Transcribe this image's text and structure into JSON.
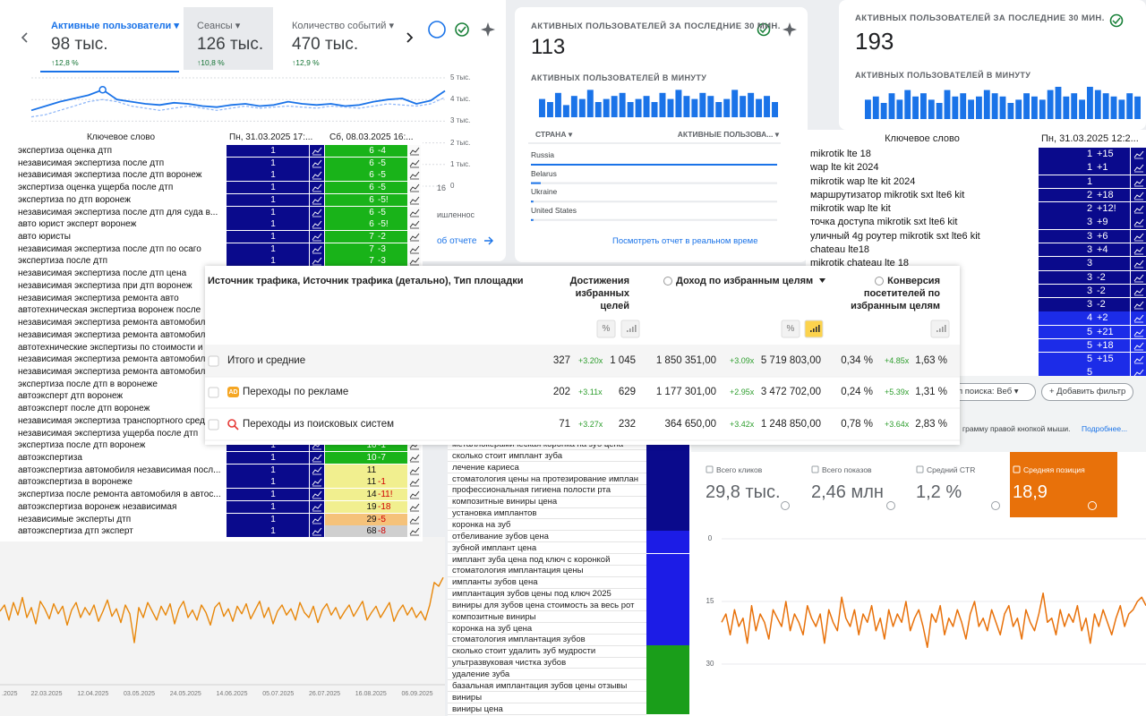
{
  "ga_card": {
    "tabs": [
      {
        "label": "Активные пользователи ▾",
        "value": "98 тыс.",
        "change": "↑12,8 %"
      },
      {
        "label": "Сеансы ▾",
        "value": "126 тыс.",
        "change": "↑10,8 %"
      },
      {
        "label": "Количество событий ▾",
        "value": "470 тыс.",
        "change": "↑12,9 %"
      }
    ],
    "chart": {
      "type": "line",
      "ylim": [
        0,
        5000
      ],
      "yticks": [
        {
          "value": 5000,
          "label": "5 тыс."
        },
        {
          "value": 4000,
          "label": "4 тыс."
        },
        {
          "value": 3000,
          "label": "3 тыс."
        },
        {
          "value": 2000,
          "label": "2 тыс."
        },
        {
          "value": 1000,
          "label": "1 тыс."
        },
        0
      ],
      "grid": true,
      "series": [
        {
          "color": "#1a73e8",
          "values": [
            3500,
            3700,
            3900,
            4050,
            4200,
            4450,
            4000,
            3900,
            3800,
            3750,
            3850,
            3800,
            3700,
            3650,
            3750,
            3800,
            3700,
            3750,
            3900,
            3800,
            3750,
            3800,
            3700,
            3750,
            3900,
            4000,
            4050,
            3800,
            3950,
            4400
          ]
        },
        {
          "color": "#8ab4f8",
          "values": [
            3200,
            3300,
            3500,
            3700,
            3900,
            4000,
            3900,
            3700,
            3600,
            3500,
            3600,
            3700,
            3600,
            3500,
            3600,
            3700,
            3600,
            3650,
            3700,
            3650,
            3600,
            3700,
            3650,
            3600,
            3700,
            3800,
            3750,
            3700,
            3800,
            4100
          ]
        }
      ]
    },
    "fragments": [
      "16",
      "ишленнос",
      "об отчете"
    ]
  },
  "realtime_1": {
    "title": "АКТИВНЫХ ПОЛЬЗОВАТЕЛЕЙ ЗА ПОСЛЕДНИЕ 30 МИН.",
    "value": "113",
    "per_minute_title": "АКТИВНЫХ ПОЛЬЗОВАТЕЛЕЙ В МИНУТУ",
    "bars": {
      "type": "bar",
      "color": "#1a73e8",
      "ylim": [
        0,
        10
      ],
      "values": [
        6,
        5,
        8,
        4,
        7,
        6,
        9,
        5,
        6,
        7,
        8,
        5,
        6,
        7,
        5,
        8,
        6,
        9,
        7,
        6,
        8,
        7,
        5,
        6,
        9,
        7,
        8,
        6,
        7,
        5
      ]
    },
    "country_header": "СТРАНА ▾",
    "users_header": "АКТИВНЫЕ ПОЛЬЗОВА... ▾",
    "countries": {
      "type": "bar",
      "color": "#1a73e8",
      "xlim": [
        0,
        100
      ],
      "categories": [
        "Russia",
        "Belarus",
        "Ukraine",
        "United States"
      ],
      "values": [
        100,
        4,
        1,
        1
      ]
    },
    "link": "Посмотреть отчет в реальном време"
  },
  "realtime_2": {
    "title": "АКТИВНЫХ ПОЛЬЗОВАТЕЛЕЙ ЗА ПОСЛЕДНИЕ 30 МИН.",
    "value": "193",
    "per_minute_title": "АКТИВНЫХ ПОЛЬЗОВАТЕЛЕЙ В МИНУТУ",
    "bars": {
      "type": "bar",
      "color": "#1a73e8",
      "ylim": [
        0,
        10
      ],
      "values": [
        6,
        7,
        5,
        8,
        6,
        9,
        7,
        8,
        6,
        5,
        9,
        7,
        8,
        6,
        7,
        9,
        8,
        7,
        5,
        6,
        8,
        7,
        6,
        9,
        10,
        7,
        8,
        6,
        10,
        9,
        8,
        7,
        6,
        8,
        7
      ]
    }
  },
  "keywords_left": {
    "headers": [
      "Ключевое слово",
      "Пн, 31.03.2025 17:...",
      "Сб, 08.03.2025 16:..."
    ],
    "col1_color": "#0a0a8c",
    "rows": [
      {
        "keyword": "экспертиза оценка дтп",
        "pos1": "1",
        "pos2": "6",
        "delta": "-4",
        "color": "#19b319"
      },
      {
        "keyword": "независимая экспертиза после дтп",
        "pos1": "1",
        "pos2": "6",
        "delta": "-5",
        "color": "#19b319"
      },
      {
        "keyword": "независимая экспертиза после дтп воронеж",
        "pos1": "1",
        "pos2": "6",
        "delta": "-5",
        "color": "#19b319"
      },
      {
        "keyword": "экспертиза оценка ущерба после дтп",
        "pos1": "1",
        "pos2": "6",
        "delta": "-5",
        "color": "#19b319"
      },
      {
        "keyword": "экспертиза по дтп воронеж",
        "pos1": "1",
        "pos2": "6",
        "delta": "-5!",
        "color": "#19b319"
      },
      {
        "keyword": "независимая экспертиза после дтп для суда в...",
        "pos1": "1",
        "pos2": "6",
        "delta": "-5",
        "color": "#19b319"
      },
      {
        "keyword": "авто юрист эксперт воронеж",
        "pos1": "1",
        "pos2": "6",
        "delta": "-5!",
        "color": "#19b319"
      },
      {
        "keyword": "авто юристы",
        "pos1": "1",
        "pos2": "7",
        "delta": "-2",
        "color": "#19b319"
      },
      {
        "keyword": "независимая экспертиза после дтп по осаго",
        "pos1": "1",
        "pos2": "7",
        "delta": "-3",
        "color": "#19b319"
      },
      {
        "keyword": "экспертиза после дтп",
        "pos1": "1",
        "pos2": "7",
        "delta": "-3",
        "color": "#19b319"
      },
      {
        "keyword": "независимая экспертиза после дтп цена"
      },
      {
        "keyword": "независимая экспертиза при дтп воронеж"
      },
      {
        "keyword": "независимая экспертиза ремонта авто"
      },
      {
        "keyword": "автотехническая экспертиза воронеж после"
      },
      {
        "keyword": "независимая экспертиза ремонта автомобил"
      },
      {
        "keyword": "независимая экспертиза ремонта автомобил"
      },
      {
        "keyword": "автотехнические экспертизы по стоимости и"
      },
      {
        "keyword": "независимая экспертиза ремонта автомобил"
      },
      {
        "keyword": "независимая экспертиза ремонта автомобил"
      },
      {
        "keyword": "экспертиза после дтп в воронеже"
      },
      {
        "keyword": "автоэксперт дтп воронеж"
      },
      {
        "keyword": "автоэксперт после дтп воронеж"
      },
      {
        "keyword": "независимая экспертиза транспортного сред"
      },
      {
        "keyword": "независимая экспертиза ущерба после дтп"
      },
      {
        "keyword": "экспертиза после дтп воронеж",
        "pos1": "1",
        "pos2": "10",
        "delta": "-1",
        "color": "#19b319"
      },
      {
        "keyword": "автоэкспертиза",
        "pos1": "1",
        "pos2": "10",
        "delta": "-7",
        "color": "#19b319"
      },
      {
        "keyword": "автоэкспертиза автомобиля независимая посл...",
        "pos1": "1",
        "pos2": "11",
        "color": "#f1ef8f"
      },
      {
        "keyword": "автоэкспертиза в воронеже",
        "pos1": "1",
        "pos2": "11",
        "delta": "-1",
        "color": "#f1ef8f"
      },
      {
        "keyword": "экспертиза после ремонта автомобиля в автос...",
        "pos1": "1",
        "pos2": "14",
        "delta": "-11!",
        "color": "#f1ef8f"
      },
      {
        "keyword": "автоэкспертиза воронеж независимая",
        "pos1": "1",
        "pos2": "19",
        "delta": "-18",
        "color": "#f1ef8f"
      },
      {
        "keyword": "независимые эксперты дтп",
        "pos1": "1",
        "pos2": "29",
        "delta": "-5",
        "color": "#f5c27a"
      },
      {
        "keyword": "автоэкспертиза дтп эксперт",
        "pos1": "1",
        "pos2": "68",
        "delta": "-8",
        "color": "#cfcfcf"
      }
    ]
  },
  "keywords_right": {
    "headers": [
      "Ключевое слово",
      "Пн, 31.03.2025 12:2..."
    ],
    "rows": [
      {
        "keyword": "mikrotik lte 18",
        "pos": "1",
        "delta": "+15",
        "color": "#0a0a8c"
      },
      {
        "keyword": "wap lte kit 2024",
        "pos": "1",
        "delta": "+1",
        "color": "#0a0a8c"
      },
      {
        "keyword": "mikrotik wap lte kit 2024",
        "pos": "1",
        "color": "#0a0a8c"
      },
      {
        "keyword": "маршрутизатор mikrotik sxt lte6 kit",
        "pos": "2",
        "delta": "+18",
        "color": "#0a0a8c"
      },
      {
        "keyword": "mikrotik wap lte kit",
        "pos": "2",
        "delta": "+12!",
        "color": "#0a0a8c"
      },
      {
        "keyword": "точка доступа mikrotik sxt lte6 kit",
        "pos": "3",
        "delta": "+9",
        "color": "#0a0a8c"
      },
      {
        "keyword": "уличный 4g роутер mikrotik sxt lte6 kit",
        "pos": "3",
        "delta": "+6",
        "color": "#0a0a8c"
      },
      {
        "keyword": "chateau lte18",
        "pos": "3",
        "delta": "+4",
        "color": "#0a0a8c"
      },
      {
        "keyword": "mikrotik chateau lte 18",
        "pos": "3",
        "color": "#0a0a8c"
      },
      {
        "pos": "3",
        "delta": "-2",
        "color": "#0a0a8c"
      },
      {
        "pos": "3",
        "delta": "-2",
        "color": "#0a0a8c"
      },
      {
        "pos": "3",
        "delta": "-2",
        "color": "#0a0a8c"
      },
      {
        "pos": "4",
        "delta": "+2",
        "color": "#1c2ce8"
      },
      {
        "pos": "5",
        "delta": "+21",
        "color": "#1c2ce8"
      },
      {
        "pos": "5",
        "delta": "+18",
        "color": "#1c2ce8"
      },
      {
        "pos": "5",
        "delta": "+15",
        "color": "#1c2ce8"
      },
      {
        "pos": "5",
        "color": "#1c2ce8"
      }
    ]
  },
  "traffic_table": {
    "headers": {
      "source": "Источник трафика, Источник трафика (детально), Тип площадки",
      "goals": [
        "Достижения",
        "избранных",
        "целей"
      ],
      "revenue": "Доход по избранным целям",
      "conversion": [
        "Конверсия",
        "посетителей по",
        "избранным целям"
      ]
    },
    "percent_icon": "%",
    "ad_badge": "AD",
    "rows": [
      {
        "label": "Итого и средние",
        "cells": [
          "327",
          "+3.20x",
          "1 045",
          "1 850 351,00",
          "+3.09x",
          "5 719 803,00",
          "0,34 %",
          "+4.85x",
          "1,63 %"
        ]
      },
      {
        "label": "Переходы по рекламе",
        "cells": [
          "202",
          "+3.11x",
          "629",
          "1 177 301,00",
          "+2.95x",
          "3 472 702,00",
          "0,24 %",
          "+5.39x",
          "1,31 %"
        ]
      },
      {
        "label": "Переходы из поисковых систем",
        "cells": [
          "71",
          "+3.27x",
          "232",
          "364 650,00",
          "+3.42x",
          "1 248 850,00",
          "0,78 %",
          "+3.64x",
          "2,83 %"
        ]
      }
    ]
  },
  "keywords_dental": {
    "rows": [
      {
        "keyword": "металлокерамическая коронка на зуб цена",
        "color": "#0a0a8c"
      },
      {
        "keyword": "сколько стоит имплант зуба",
        "color": "#0a0a8c"
      },
      {
        "keyword": "лечение кариеса",
        "color": "#0a0a8c"
      },
      {
        "keyword": "стоматология цены на протезирование имплан",
        "color": "#0a0a8c"
      },
      {
        "keyword": "профессиональная гигиена полости рта",
        "color": "#0a0a8c"
      },
      {
        "keyword": "композитные виниры цена",
        "color": "#0a0a8c"
      },
      {
        "keyword": "установка имплантов",
        "color": "#0a0a8c"
      },
      {
        "keyword": "коронка на зуб",
        "color": "#0a0a8c"
      },
      {
        "keyword": "отбеливание зубов цена",
        "color": "#1c1ce6"
      },
      {
        "keyword": "зубной имплант цена",
        "color": "#1c1ce6"
      },
      {
        "keyword": "имплант зуба цена под ключ с коронкой",
        "color": "#1c1ce6"
      },
      {
        "keyword": "стоматология имплантация цены",
        "color": "#1c1ce6"
      },
      {
        "keyword": "импланты зубов цена",
        "color": "#1c1ce6"
      },
      {
        "keyword": "имплантация зубов цены под ключ 2025",
        "color": "#1c1ce6"
      },
      {
        "keyword": "виниры для зубов цена стоимость за весь рот",
        "color": "#1c1ce6"
      },
      {
        "keyword": "композитные виниры",
        "color": "#1c1ce6"
      },
      {
        "keyword": "коронка на зуб цена",
        "color": "#1c1ce6"
      },
      {
        "keyword": "стоматология имплантация зубов",
        "color": "#1c1ce6"
      },
      {
        "keyword": "сколько стоит удалить зуб мудрости",
        "color": "#1a9e1a"
      },
      {
        "keyword": "ультразвуковая чистка зубов",
        "color": "#1a9e1a"
      },
      {
        "keyword": "удаление зуба",
        "color": "#1a9e1a"
      },
      {
        "keyword": "базальная имплантация зубов цены отзывы",
        "color": "#1a9e1a"
      },
      {
        "keyword": "виниры",
        "color": "#1a9e1a"
      },
      {
        "keyword": "виниры цена",
        "color": "#1a9e1a"
      }
    ]
  },
  "search_console": {
    "filter_button": "п поиска: Веб ▾",
    "add_filter": "+ Добавить фильтр",
    "hint": "грамму правой кнопкой мыши.",
    "hint_link": "Подробнее...",
    "metrics": [
      {
        "label": "Всего кликов",
        "value": "29,8 тыс."
      },
      {
        "label": "Всего показов",
        "value": "2,46 млн"
      },
      {
        "label": "Средний CTR",
        "value": "1,2 %"
      },
      {
        "label": "Средняя позиция",
        "value": "18,9",
        "color": "#e8710a"
      }
    ],
    "chart": {
      "type": "line",
      "color": "#e8710a",
      "ylim": [
        0,
        30
      ],
      "y_reversed": true,
      "yticks": [
        0,
        15,
        30
      ],
      "values": [
        20,
        18,
        23,
        17,
        21,
        19,
        25,
        16,
        22,
        18,
        20,
        24,
        17,
        19,
        21,
        15,
        22,
        18,
        20,
        23,
        16,
        19,
        21,
        18,
        25,
        17,
        20,
        22,
        14,
        19,
        21,
        17,
        23,
        18,
        20,
        16,
        22,
        19,
        24,
        17,
        21,
        18,
        20,
        15,
        22,
        19,
        17,
        21,
        26,
        18,
        20,
        16,
        23,
        19,
        21,
        17,
        20,
        24,
        18,
        15,
        21,
        19,
        22,
        17,
        20,
        23,
        18,
        16,
        21,
        19,
        24,
        17,
        20,
        22,
        18,
        13,
        20,
        19,
        23,
        17,
        21,
        18,
        20,
        16,
        22,
        19,
        25,
        18,
        21,
        17,
        20,
        23,
        19,
        16,
        21,
        18,
        17,
        15,
        14,
        16
      ]
    }
  },
  "trend_chart": {
    "type": "line",
    "color": "#e8870a",
    "ylim": [
      0,
      100
    ],
    "categories": [
      ".2025",
      "22.03.2025",
      "12.04.2025",
      "03.05.2025",
      "24.05.2025",
      "14.06.2025",
      "05.07.2025",
      "26.07.2025",
      "16.08.2025",
      "06.09.2025"
    ],
    "values": [
      55,
      60,
      48,
      62,
      52,
      66,
      50,
      58,
      45,
      63,
      57,
      49,
      61,
      53,
      59,
      44,
      56,
      62,
      50,
      58,
      52,
      60,
      47,
      55,
      64,
      51,
      57,
      46,
      60,
      53,
      30,
      58,
      50,
      62,
      55,
      48,
      59,
      52,
      61,
      45,
      57,
      63,
      50,
      56,
      48,
      60,
      54,
      44,
      58,
      62,
      51,
      57,
      47,
      59,
      53,
      61,
      49,
      56,
      63,
      50,
      58,
      45,
      55,
      60,
      52,
      57,
      48,
      62,
      54,
      50,
      59,
      46,
      56,
      61,
      52,
      58,
      49,
      55,
      60,
      51,
      57,
      63,
      48,
      54,
      59,
      50,
      56,
      62,
      47,
      55,
      60,
      52,
      58,
      50,
      55,
      48,
      60,
      78,
      75,
      82
    ]
  }
}
